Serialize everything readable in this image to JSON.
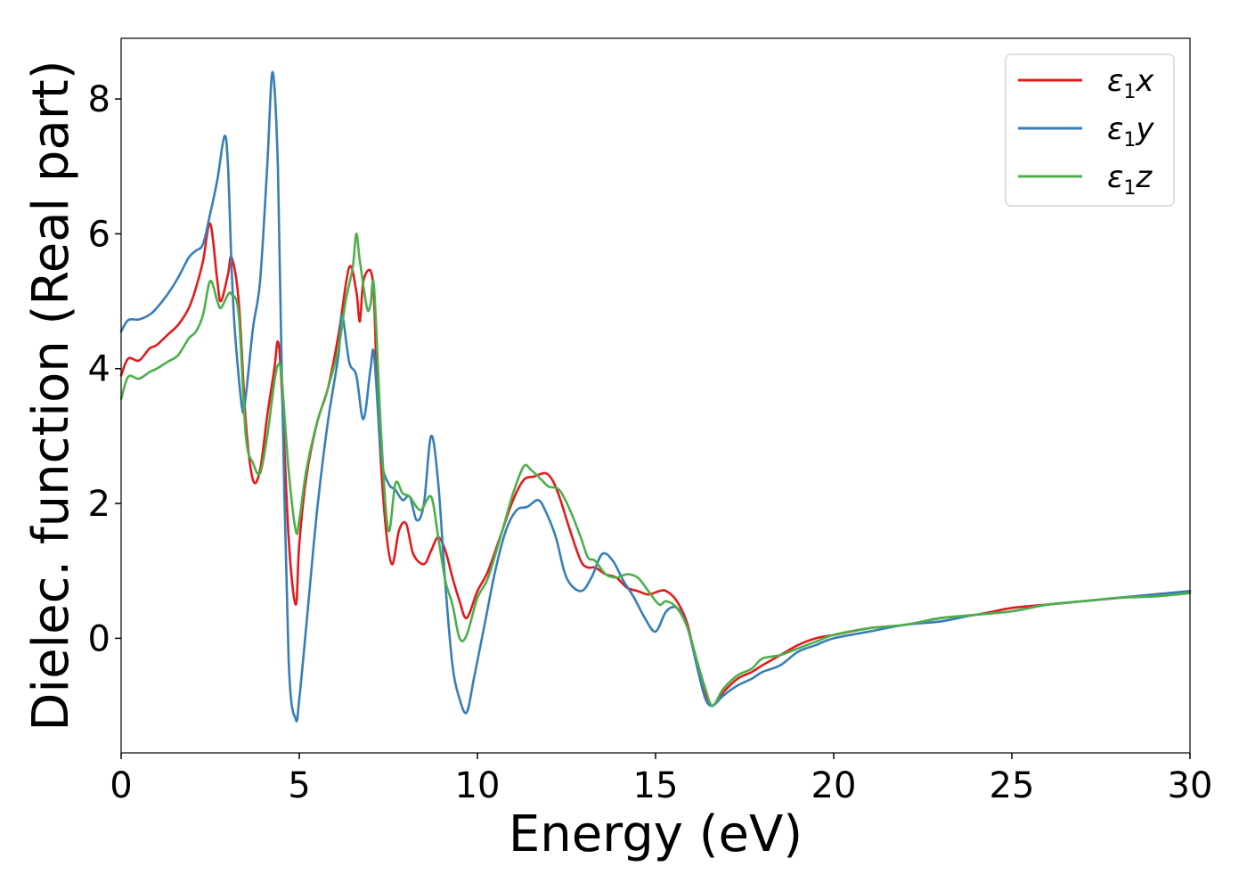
{
  "chart_data": {
    "type": "line",
    "title": "",
    "xlabel": "Energy (eV)",
    "ylabel": "Dielec. function (Real part)",
    "xlim": [
      0,
      30
    ],
    "ylim": [
      -1.7,
      8.9
    ],
    "xticks": [
      0,
      5,
      10,
      15,
      20,
      25,
      30
    ],
    "xtick_labels": [
      "0",
      "5",
      "10",
      "15",
      "20",
      "25",
      "30"
    ],
    "yticks": [
      0,
      2,
      4,
      6,
      8
    ],
    "ytick_labels": [
      "0",
      "2",
      "4",
      "6",
      "8"
    ],
    "grid": false,
    "legend_position": "top-right",
    "series": [
      {
        "name": "ε1x",
        "legend_main": "ε",
        "legend_sub": "1",
        "legend_var": "x",
        "color": "#e41a1c",
        "x": [
          0,
          0.2,
          0.5,
          0.8,
          1.0,
          1.3,
          1.6,
          1.9,
          2.1,
          2.3,
          2.5,
          2.7,
          2.8,
          3.0,
          3.1,
          3.3,
          3.5,
          3.7,
          3.9,
          4.1,
          4.3,
          4.4,
          4.5,
          4.7,
          4.9,
          5.0,
          5.2,
          5.5,
          5.8,
          6.1,
          6.4,
          6.6,
          6.7,
          6.8,
          7.0,
          7.1,
          7.2,
          7.4,
          7.6,
          7.8,
          8.0,
          8.2,
          8.5,
          8.7,
          8.9,
          9.1,
          9.3,
          9.5,
          9.7,
          10.0,
          10.3,
          10.7,
          11.0,
          11.3,
          11.6,
          11.9,
          12.1,
          12.3,
          12.6,
          12.9,
          13.1,
          13.3,
          13.6,
          13.9,
          14.2,
          14.5,
          14.8,
          15.1,
          15.3,
          15.6,
          15.9,
          16.2,
          16.4,
          16.6,
          16.9,
          17.3,
          17.7,
          18.0,
          18.5,
          19.0,
          19.5,
          20.0,
          21.0,
          22.0,
          23.0,
          24.0,
          25.0,
          26.0,
          27.0,
          28.0,
          29.0,
          30.0
        ],
        "values": [
          3.9,
          4.15,
          4.12,
          4.3,
          4.35,
          4.5,
          4.65,
          4.9,
          5.2,
          5.6,
          6.15,
          5.3,
          5.0,
          5.4,
          5.65,
          5.0,
          3.2,
          2.35,
          2.5,
          3.3,
          4.0,
          4.4,
          3.8,
          1.5,
          0.5,
          1.4,
          2.4,
          3.2,
          3.7,
          4.5,
          5.5,
          5.15,
          4.7,
          5.3,
          5.45,
          5.0,
          3.5,
          1.8,
          1.1,
          1.6,
          1.7,
          1.25,
          1.1,
          1.3,
          1.5,
          1.3,
          0.9,
          0.55,
          0.3,
          0.7,
          1.0,
          1.6,
          2.05,
          2.35,
          2.4,
          2.45,
          2.35,
          2.1,
          1.6,
          1.15,
          1.05,
          1.05,
          0.95,
          0.9,
          0.75,
          0.7,
          0.65,
          0.7,
          0.7,
          0.55,
          0.2,
          -0.5,
          -0.85,
          -1.0,
          -0.8,
          -0.6,
          -0.5,
          -0.4,
          -0.25,
          -0.1,
          0.0,
          0.05,
          0.15,
          0.2,
          0.3,
          0.35,
          0.45,
          0.5,
          0.55,
          0.6,
          0.65,
          0.7
        ]
      },
      {
        "name": "ε1y",
        "legend_main": "ε",
        "legend_sub": "1",
        "legend_var": "y",
        "color": "#377eb8",
        "x": [
          0,
          0.2,
          0.5,
          0.8,
          1.0,
          1.3,
          1.6,
          1.9,
          2.1,
          2.3,
          2.5,
          2.7,
          2.9,
          3.0,
          3.1,
          3.2,
          3.4,
          3.5,
          3.7,
          3.9,
          4.1,
          4.25,
          4.4,
          4.5,
          4.7,
          4.9,
          5.0,
          5.2,
          5.5,
          5.8,
          6.1,
          6.2,
          6.4,
          6.6,
          6.8,
          7.0,
          7.1,
          7.3,
          7.5,
          7.7,
          7.9,
          8.1,
          8.3,
          8.5,
          8.7,
          8.9,
          9.1,
          9.3,
          9.5,
          9.7,
          9.9,
          10.2,
          10.5,
          10.8,
          11.1,
          11.4,
          11.7,
          11.9,
          12.2,
          12.5,
          12.9,
          13.2,
          13.5,
          13.8,
          14.1,
          14.4,
          14.7,
          15.0,
          15.3,
          15.6,
          15.9,
          16.2,
          16.4,
          16.6,
          16.9,
          17.3,
          17.7,
          18.0,
          18.5,
          19.0,
          19.5,
          20.0,
          21.0,
          22.0,
          23.0,
          24.0,
          25.0,
          26.0,
          27.0,
          28.0,
          29.0,
          30.0
        ],
        "values": [
          4.55,
          4.72,
          4.73,
          4.8,
          4.9,
          5.1,
          5.35,
          5.65,
          5.75,
          5.85,
          6.3,
          6.8,
          7.45,
          7.0,
          5.5,
          4.5,
          3.4,
          3.6,
          4.6,
          5.3,
          7.0,
          8.4,
          7.0,
          4.2,
          -0.3,
          -1.2,
          -0.9,
          0.2,
          1.9,
          3.2,
          4.2,
          4.8,
          4.1,
          3.9,
          3.25,
          4.0,
          4.2,
          2.7,
          2.3,
          2.2,
          2.05,
          2.1,
          1.75,
          2.0,
          3.0,
          2.3,
          0.8,
          -0.4,
          -0.9,
          -1.1,
          -0.6,
          0.2,
          1.0,
          1.6,
          1.9,
          1.95,
          2.05,
          1.9,
          1.5,
          0.9,
          0.7,
          0.9,
          1.25,
          1.15,
          0.85,
          0.6,
          0.3,
          0.1,
          0.4,
          0.45,
          0.15,
          -0.5,
          -0.9,
          -1.0,
          -0.85,
          -0.7,
          -0.6,
          -0.5,
          -0.4,
          -0.2,
          -0.1,
          0.0,
          0.1,
          0.2,
          0.25,
          0.35,
          0.4,
          0.5,
          0.55,
          0.6,
          0.65,
          0.7
        ]
      },
      {
        "name": "ε1z",
        "legend_main": "ε",
        "legend_sub": "1",
        "legend_var": "z",
        "color": "#4daf4a",
        "x": [
          0,
          0.2,
          0.5,
          0.8,
          1.0,
          1.3,
          1.6,
          1.9,
          2.1,
          2.3,
          2.5,
          2.7,
          2.8,
          3.0,
          3.1,
          3.3,
          3.5,
          3.7,
          3.9,
          4.1,
          4.3,
          4.4,
          4.5,
          4.7,
          4.9,
          5.0,
          5.2,
          5.5,
          5.8,
          6.1,
          6.3,
          6.5,
          6.6,
          6.7,
          6.9,
          7.0,
          7.1,
          7.3,
          7.5,
          7.7,
          7.9,
          8.1,
          8.4,
          8.7,
          8.9,
          9.1,
          9.3,
          9.5,
          9.7,
          10.0,
          10.3,
          10.7,
          11.0,
          11.3,
          11.5,
          11.8,
          12.0,
          12.3,
          12.6,
          12.9,
          13.1,
          13.3,
          13.6,
          13.9,
          14.2,
          14.5,
          14.8,
          15.1,
          15.3,
          15.6,
          15.9,
          16.2,
          16.4,
          16.6,
          16.9,
          17.3,
          17.7,
          18.0,
          18.5,
          19.0,
          19.5,
          20.0,
          21.0,
          22.0,
          23.0,
          24.0,
          25.0,
          26.0,
          27.0,
          28.0,
          29.0,
          30.0
        ],
        "values": [
          3.55,
          3.88,
          3.85,
          3.95,
          4.0,
          4.1,
          4.2,
          4.45,
          4.55,
          4.8,
          5.3,
          5.0,
          4.9,
          5.1,
          5.1,
          4.8,
          3.0,
          2.6,
          2.45,
          3.0,
          3.8,
          4.05,
          3.9,
          2.5,
          1.6,
          1.75,
          2.5,
          3.2,
          3.7,
          4.3,
          5.0,
          5.5,
          6.0,
          5.6,
          4.9,
          4.95,
          5.2,
          3.0,
          1.6,
          2.3,
          2.15,
          2.1,
          1.9,
          2.1,
          1.5,
          0.85,
          0.5,
          0.0,
          0.05,
          0.6,
          0.9,
          1.6,
          2.15,
          2.55,
          2.5,
          2.35,
          2.25,
          2.2,
          1.9,
          1.5,
          1.2,
          1.15,
          0.95,
          0.9,
          0.95,
          0.9,
          0.7,
          0.5,
          0.55,
          0.45,
          0.15,
          -0.4,
          -0.75,
          -1.0,
          -0.75,
          -0.55,
          -0.45,
          -0.3,
          -0.25,
          -0.15,
          -0.05,
          0.05,
          0.15,
          0.2,
          0.3,
          0.35,
          0.4,
          0.5,
          0.55,
          0.6,
          0.62,
          0.67
        ]
      }
    ]
  }
}
